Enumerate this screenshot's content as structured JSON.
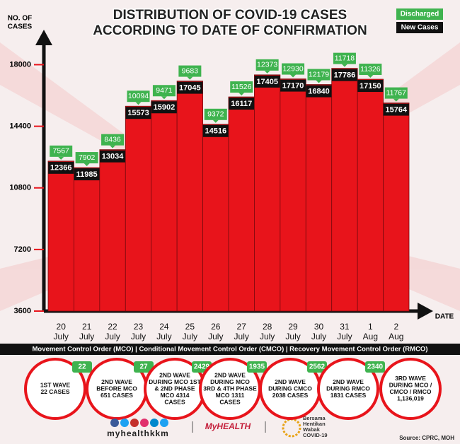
{
  "chart_data": {
    "type": "bar",
    "title": [
      "DISTRIBUTION OF COVID-19 CASES",
      "ACCORDING TO DATE OF CONFIRMATION"
    ],
    "y_label": [
      "NO. OF",
      "CASES"
    ],
    "x_label": "DATE",
    "categories": [
      "20 July",
      "21 July",
      "22 July",
      "23 July",
      "24 July",
      "25 July",
      "26 July",
      "27 July",
      "28 July",
      "29 July",
      "30 July",
      "31 July",
      "1 Aug",
      "2 Aug"
    ],
    "bar_color": "#e8141b",
    "series": [
      {
        "name": "New Cases",
        "color": "#111111",
        "values": [
          12366,
          11985,
          13034,
          15573,
          15902,
          17045,
          14516,
          16117,
          17405,
          17170,
          16840,
          17786,
          17150,
          15764
        ]
      },
      {
        "name": "Discharged",
        "color": "#3fb34f",
        "values": [
          7567,
          7902,
          8436,
          10094,
          9471,
          9683,
          9372,
          11526,
          12373,
          12930,
          12179,
          11718,
          11326,
          11767
        ]
      }
    ],
    "ylim": [
      3600,
      19300
    ],
    "yticks": [
      3600,
      7200,
      10800,
      14400,
      18000
    ],
    "grid": false
  },
  "phase_bar": "Movement Control Order (MCO) | Conditional Movement Control Order (CMCO) | Recovery Movement Control Order (RMCO)",
  "waves": [
    {
      "badge": "22",
      "lines": [
        "1ST WAVE",
        "22 CASES"
      ]
    },
    {
      "badge": "27",
      "lines": [
        "2ND WAVE",
        "BEFORE MCO",
        "651 CASES"
      ]
    },
    {
      "badge": "2429",
      "lines": [
        "2ND WAVE",
        "DURING MCO 1ST",
        "& 2ND PHASE",
        "MCO 4314",
        "CASES"
      ]
    },
    {
      "badge": "1935",
      "lines": [
        "2ND WAVE",
        "DURING MCO",
        "3RD & 4TH PHASE",
        "MCO 1311",
        "CASES"
      ]
    },
    {
      "badge": "2562",
      "lines": [
        "2ND WAVE",
        "DURING CMCO",
        "2038 CASES"
      ]
    },
    {
      "badge": "2340",
      "lines": [
        "2ND WAVE",
        "DURING RMCO",
        "1831 CASES"
      ]
    },
    {
      "lines": [
        "3RD WAVE",
        "DURING MCO /",
        "CMCO / RMCO",
        "1,136,019"
      ]
    }
  ],
  "footer": {
    "handle": "myhealthkkm",
    "logo": "MyHEALTH",
    "campaign": [
      "Bersama",
      "Hentikan",
      "Wabak",
      "COVID-19"
    ],
    "source": "Source: CPRC, MOH"
  }
}
